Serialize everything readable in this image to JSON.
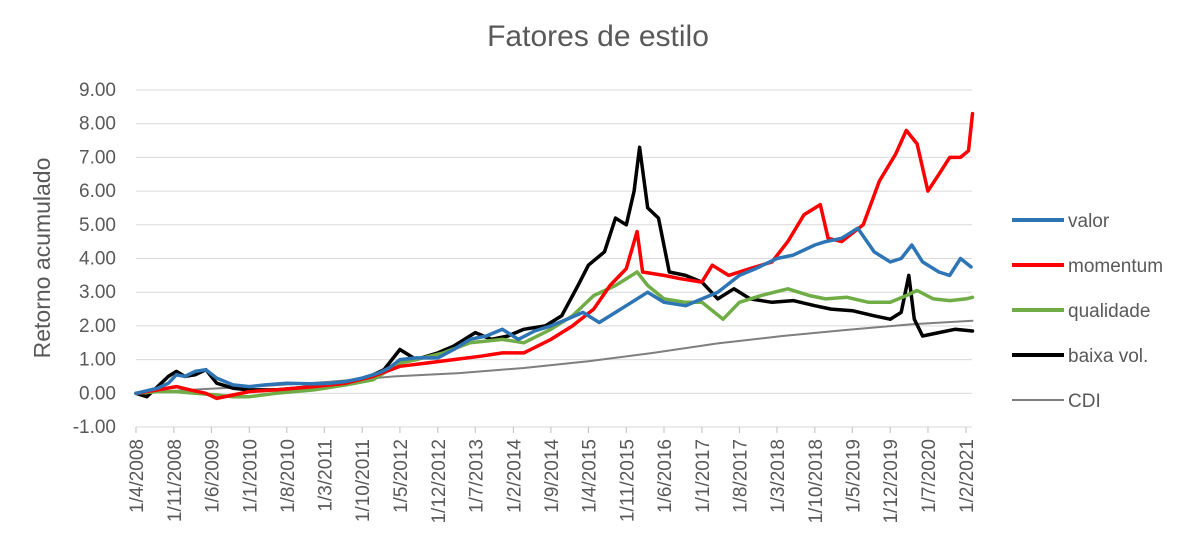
{
  "chart_data": {
    "type": "line",
    "title": "Fatores de estilo",
    "xlabel": "",
    "ylabel": "Retorno acumulado",
    "ylim": [
      -1.0,
      9.0
    ],
    "yticks": [
      "9.00",
      "8.00",
      "7.00",
      "6.00",
      "5.00",
      "4.00",
      "3.00",
      "2.00",
      "1.00",
      "0.00",
      "-1.00"
    ],
    "ytick_values": [
      9,
      8,
      7,
      6,
      5,
      4,
      3,
      2,
      1,
      0,
      -1
    ],
    "xticks": [
      "1/4/2008",
      "1/11/2008",
      "1/6/2009",
      "1/1/2010",
      "1/8/2010",
      "1/3/2011",
      "1/10/2011",
      "1/5/2012",
      "1/12/2012",
      "1/7/2013",
      "1/2/2014",
      "1/9/2014",
      "1/4/2015",
      "1/11/2015",
      "1/6/2016",
      "1/1/2017",
      "1/8/2017",
      "1/3/2018",
      "1/10/2018",
      "1/5/2019",
      "1/12/2019",
      "1/7/2020",
      "1/2/2021"
    ],
    "grid": true,
    "legend_position": "right",
    "series": [
      {
        "name": "valor",
        "color": "#2E75B6",
        "points": [
          [
            "2008-04-01",
            0.0
          ],
          [
            "2008-08-01",
            0.15
          ],
          [
            "2008-10-01",
            0.3
          ],
          [
            "2008-11-15",
            0.55
          ],
          [
            "2009-01-01",
            0.5
          ],
          [
            "2009-03-01",
            0.65
          ],
          [
            "2009-05-01",
            0.7
          ],
          [
            "2009-07-01",
            0.45
          ],
          [
            "2009-10-01",
            0.25
          ],
          [
            "2010-01-01",
            0.2
          ],
          [
            "2010-04-01",
            0.25
          ],
          [
            "2010-08-01",
            0.3
          ],
          [
            "2011-01-01",
            0.28
          ],
          [
            "2011-04-01",
            0.3
          ],
          [
            "2011-07-01",
            0.35
          ],
          [
            "2011-10-01",
            0.45
          ],
          [
            "2012-01-01",
            0.6
          ],
          [
            "2012-03-01",
            0.75
          ],
          [
            "2012-05-01",
            1.0
          ],
          [
            "2012-08-01",
            1.05
          ],
          [
            "2012-12-01",
            1.05
          ],
          [
            "2013-03-01",
            1.3
          ],
          [
            "2013-06-01",
            1.6
          ],
          [
            "2013-09-01",
            1.7
          ],
          [
            "2013-12-01",
            1.9
          ],
          [
            "2014-03-01",
            1.6
          ],
          [
            "2014-06-01",
            1.85
          ],
          [
            "2014-09-01",
            2.0
          ],
          [
            "2014-12-01",
            2.2
          ],
          [
            "2015-03-01",
            2.4
          ],
          [
            "2015-06-01",
            2.1
          ],
          [
            "2015-09-01",
            2.4
          ],
          [
            "2015-12-01",
            2.7
          ],
          [
            "2016-03-01",
            3.0
          ],
          [
            "2016-06-01",
            2.7
          ],
          [
            "2016-10-01",
            2.6
          ],
          [
            "2017-01-01",
            2.8
          ],
          [
            "2017-04-01",
            3.0
          ],
          [
            "2017-08-01",
            3.5
          ],
          [
            "2017-11-01",
            3.7
          ],
          [
            "2018-03-01",
            4.0
          ],
          [
            "2018-06-01",
            4.1
          ],
          [
            "2018-10-01",
            4.4
          ],
          [
            "2018-12-01",
            4.5
          ],
          [
            "2019-03-01",
            4.6
          ],
          [
            "2019-06-01",
            4.9
          ],
          [
            "2019-09-01",
            4.2
          ],
          [
            "2019-12-01",
            3.9
          ],
          [
            "2020-02-01",
            4.0
          ],
          [
            "2020-04-01",
            4.4
          ],
          [
            "2020-06-01",
            3.9
          ],
          [
            "2020-09-01",
            3.6
          ],
          [
            "2020-11-01",
            3.5
          ],
          [
            "2021-01-01",
            4.0
          ],
          [
            "2021-03-01",
            3.75
          ]
        ]
      },
      {
        "name": "momentum",
        "color": "#FF0000",
        "points": [
          [
            "2008-04-01",
            0.0
          ],
          [
            "2008-08-01",
            0.1
          ],
          [
            "2008-11-15",
            0.2
          ],
          [
            "2009-02-01",
            0.1
          ],
          [
            "2009-05-01",
            0.0
          ],
          [
            "2009-07-01",
            -0.15
          ],
          [
            "2009-10-01",
            -0.05
          ],
          [
            "2010-01-01",
            0.05
          ],
          [
            "2010-06-01",
            0.1
          ],
          [
            "2011-01-01",
            0.2
          ],
          [
            "2011-07-01",
            0.3
          ],
          [
            "2011-12-01",
            0.5
          ],
          [
            "2012-05-01",
            0.8
          ],
          [
            "2012-10-01",
            0.9
          ],
          [
            "2013-03-01",
            1.0
          ],
          [
            "2013-08-01",
            1.1
          ],
          [
            "2013-12-01",
            1.2
          ],
          [
            "2014-04-01",
            1.2
          ],
          [
            "2014-09-01",
            1.6
          ],
          [
            "2015-01-01",
            2.0
          ],
          [
            "2015-05-01",
            2.5
          ],
          [
            "2015-08-01",
            3.2
          ],
          [
            "2015-11-01",
            3.7
          ],
          [
            "2016-01-01",
            4.8
          ],
          [
            "2016-02-01",
            3.6
          ],
          [
            "2016-06-01",
            3.5
          ],
          [
            "2016-09-01",
            3.4
          ],
          [
            "2017-01-01",
            3.3
          ],
          [
            "2017-03-01",
            3.8
          ],
          [
            "2017-06-01",
            3.5
          ],
          [
            "2017-10-01",
            3.7
          ],
          [
            "2018-02-01",
            3.9
          ],
          [
            "2018-05-01",
            4.5
          ],
          [
            "2018-08-01",
            5.3
          ],
          [
            "2018-11-01",
            5.6
          ],
          [
            "2018-12-15",
            4.6
          ],
          [
            "2019-03-01",
            4.5
          ],
          [
            "2019-07-01",
            5.0
          ],
          [
            "2019-10-01",
            6.3
          ],
          [
            "2020-01-01",
            7.1
          ],
          [
            "2020-03-01",
            7.8
          ],
          [
            "2020-05-01",
            7.4
          ],
          [
            "2020-07-01",
            6.0
          ],
          [
            "2020-09-01",
            6.5
          ],
          [
            "2020-11-01",
            7.0
          ],
          [
            "2021-01-01",
            7.0
          ],
          [
            "2021-02-15",
            7.2
          ],
          [
            "2021-03-10",
            8.3
          ]
        ]
      },
      {
        "name": "qualidade",
        "color": "#70AD47",
        "points": [
          [
            "2008-04-01",
            0.0
          ],
          [
            "2008-08-01",
            0.05
          ],
          [
            "2008-11-15",
            0.05
          ],
          [
            "2009-03-01",
            0.0
          ],
          [
            "2009-07-01",
            -0.05
          ],
          [
            "2009-10-01",
            -0.1
          ],
          [
            "2010-01-01",
            -0.1
          ],
          [
            "2010-06-01",
            0.0
          ],
          [
            "2011-01-01",
            0.1
          ],
          [
            "2011-07-01",
            0.25
          ],
          [
            "2011-12-01",
            0.4
          ],
          [
            "2012-05-01",
            0.9
          ],
          [
            "2012-08-01",
            1.0
          ],
          [
            "2013-01-01",
            1.2
          ],
          [
            "2013-06-01",
            1.5
          ],
          [
            "2013-12-01",
            1.6
          ],
          [
            "2014-04-01",
            1.5
          ],
          [
            "2014-09-01",
            1.9
          ],
          [
            "2015-01-01",
            2.3
          ],
          [
            "2015-05-01",
            2.9
          ],
          [
            "2015-09-01",
            3.2
          ],
          [
            "2016-01-01",
            3.6
          ],
          [
            "2016-03-01",
            3.2
          ],
          [
            "2016-06-01",
            2.8
          ],
          [
            "2016-10-01",
            2.7
          ],
          [
            "2017-01-01",
            2.7
          ],
          [
            "2017-05-01",
            2.2
          ],
          [
            "2017-08-01",
            2.7
          ],
          [
            "2017-12-01",
            2.9
          ],
          [
            "2018-05-01",
            3.1
          ],
          [
            "2018-09-01",
            2.9
          ],
          [
            "2018-12-01",
            2.8
          ],
          [
            "2019-04-01",
            2.85
          ],
          [
            "2019-08-01",
            2.7
          ],
          [
            "2019-12-01",
            2.7
          ],
          [
            "2020-03-01",
            2.9
          ],
          [
            "2020-05-01",
            3.05
          ],
          [
            "2020-08-01",
            2.8
          ],
          [
            "2020-11-01",
            2.75
          ],
          [
            "2021-02-01",
            2.8
          ],
          [
            "2021-03-10",
            2.85
          ]
        ]
      },
      {
        "name": "baixa vol.",
        "color": "#000000",
        "points": [
          [
            "2008-04-01",
            0.0
          ],
          [
            "2008-06-01",
            -0.1
          ],
          [
            "2008-08-01",
            0.2
          ],
          [
            "2008-10-01",
            0.5
          ],
          [
            "2008-11-15",
            0.65
          ],
          [
            "2009-01-01",
            0.5
          ],
          [
            "2009-03-01",
            0.55
          ],
          [
            "2009-05-01",
            0.7
          ],
          [
            "2009-07-01",
            0.3
          ],
          [
            "2009-10-01",
            0.15
          ],
          [
            "2010-01-01",
            0.1
          ],
          [
            "2010-06-01",
            0.1
          ],
          [
            "2011-01-01",
            0.2
          ],
          [
            "2011-06-01",
            0.3
          ],
          [
            "2011-10-01",
            0.4
          ],
          [
            "2012-02-01",
            0.7
          ],
          [
            "2012-05-01",
            1.3
          ],
          [
            "2012-08-01",
            1.0
          ],
          [
            "2012-12-01",
            1.2
          ],
          [
            "2013-03-01",
            1.4
          ],
          [
            "2013-07-01",
            1.8
          ],
          [
            "2013-10-01",
            1.6
          ],
          [
            "2014-01-01",
            1.7
          ],
          [
            "2014-04-01",
            1.9
          ],
          [
            "2014-08-01",
            2.0
          ],
          [
            "2014-11-01",
            2.3
          ],
          [
            "2015-02-01",
            3.2
          ],
          [
            "2015-04-01",
            3.8
          ],
          [
            "2015-07-01",
            4.2
          ],
          [
            "2015-09-01",
            5.2
          ],
          [
            "2015-11-01",
            5.0
          ],
          [
            "2015-12-15",
            6.0
          ],
          [
            "2016-01-15",
            7.3
          ],
          [
            "2016-03-01",
            5.5
          ],
          [
            "2016-05-01",
            5.2
          ],
          [
            "2016-07-01",
            3.6
          ],
          [
            "2016-10-01",
            3.5
          ],
          [
            "2017-01-01",
            3.3
          ],
          [
            "2017-04-01",
            2.8
          ],
          [
            "2017-07-01",
            3.1
          ],
          [
            "2017-10-01",
            2.8
          ],
          [
            "2018-02-01",
            2.7
          ],
          [
            "2018-06-01",
            2.75
          ],
          [
            "2018-10-01",
            2.6
          ],
          [
            "2019-01-01",
            2.5
          ],
          [
            "2019-05-01",
            2.45
          ],
          [
            "2019-09-01",
            2.3
          ],
          [
            "2019-12-01",
            2.2
          ],
          [
            "2020-02-01",
            2.4
          ],
          [
            "2020-03-15",
            3.5
          ],
          [
            "2020-04-15",
            2.2
          ],
          [
            "2020-06-01",
            1.7
          ],
          [
            "2020-09-01",
            1.8
          ],
          [
            "2020-12-01",
            1.9
          ],
          [
            "2021-03-10",
            1.85
          ]
        ]
      },
      {
        "name": "CDI",
        "color": "#7F7F7F",
        "points": [
          [
            "2008-04-01",
            0.0
          ],
          [
            "2009-04-01",
            0.12
          ],
          [
            "2010-04-01",
            0.22
          ],
          [
            "2011-04-01",
            0.34
          ],
          [
            "2012-04-01",
            0.5
          ],
          [
            "2013-04-01",
            0.6
          ],
          [
            "2014-04-01",
            0.75
          ],
          [
            "2015-04-01",
            0.95
          ],
          [
            "2016-04-01",
            1.2
          ],
          [
            "2017-04-01",
            1.48
          ],
          [
            "2018-04-01",
            1.7
          ],
          [
            "2019-04-01",
            1.88
          ],
          [
            "2020-04-01",
            2.05
          ],
          [
            "2021-03-10",
            2.15
          ]
        ]
      }
    ]
  }
}
